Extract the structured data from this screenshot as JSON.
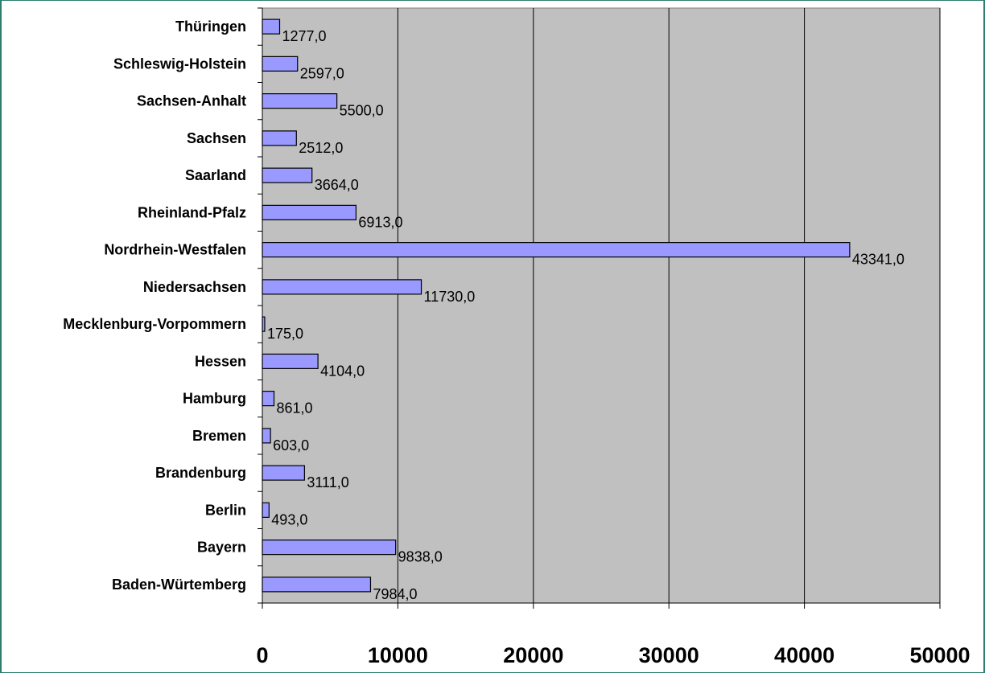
{
  "chart_data": {
    "type": "bar",
    "orientation": "horizontal",
    "categories": [
      "Baden-Würtemberg",
      "Bayern",
      "Berlin",
      "Brandenburg",
      "Bremen",
      "Hamburg",
      "Hessen",
      "Mecklenburg-Vorpommern",
      "Niedersachsen",
      "Nordrhein-Westfalen",
      "Rheinland-Pfalz",
      "Saarland",
      "Sachsen",
      "Sachsen-Anhalt",
      "Schleswig-Holstein",
      "Thüringen"
    ],
    "values": [
      7984,
      9838,
      493,
      3111,
      603,
      861,
      4104,
      175,
      11730,
      43341,
      6913,
      3664,
      2512,
      5500,
      2597,
      1277
    ],
    "value_labels": [
      "7984,0",
      "9838,0",
      "493,0",
      "3111,0",
      "603,0",
      "861,0",
      "4104,0",
      "175,0",
      "11730,0",
      "43341,0",
      "6913,0",
      "3664,0",
      "2512,0",
      "5500,0",
      "2597,0",
      "1277,0"
    ],
    "x_ticks": [
      "0",
      "10000",
      "20000",
      "30000",
      "40000",
      "50000"
    ],
    "xlim": [
      0,
      50000
    ],
    "grid": true,
    "legend": "none",
    "colors": {
      "bar_fill": "#9999ff",
      "bar_stroke": "#000000",
      "plot_background": "#c0c0c0",
      "gridline": "#000000",
      "frame_border": "#2e7d6e"
    }
  }
}
